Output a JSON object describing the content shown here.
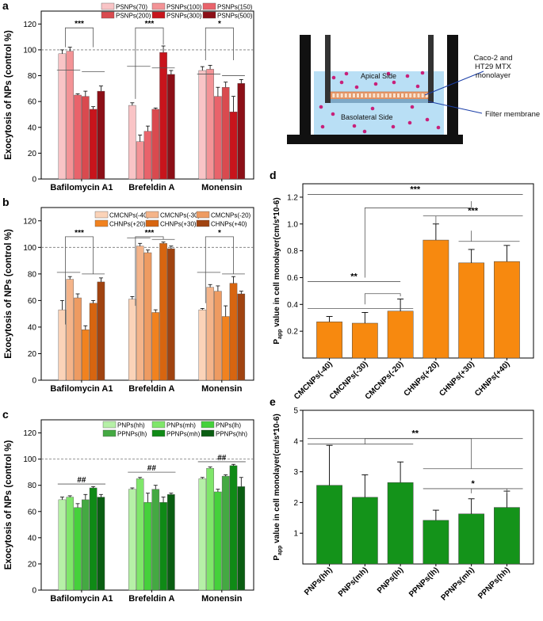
{
  "colors": {
    "axis": "#000000",
    "dash": "#777777",
    "water": "#b9dff5",
    "membrane": "#f2a172",
    "particle": "#c8207a",
    "pink_label_line": "#222222"
  },
  "chart_data": [
    {
      "id": "a",
      "panel_label": "a",
      "type": "bar",
      "ylabel": "Exocytosis of NPs (control %)",
      "ylim": [
        0,
        130
      ],
      "yticks": [
        0,
        20,
        40,
        60,
        80,
        100,
        120
      ],
      "reference_line": 100,
      "categories": [
        "Bafilomycin A1",
        "Brefeldin A",
        "Monensin"
      ],
      "series": [
        {
          "name": "PSNPs(70)",
          "color": "#f9c4c6",
          "values": [
            97,
            57,
            84
          ],
          "errors": [
            3,
            2,
            3
          ]
        },
        {
          "name": "PSNPs(100)",
          "color": "#f39396",
          "values": [
            99,
            29,
            85
          ],
          "errors": [
            3,
            5,
            3
          ]
        },
        {
          "name": "PSNPs(150)",
          "color": "#e9636b",
          "values": [
            65,
            37,
            64
          ],
          "errors": [
            1,
            4,
            7
          ]
        },
        {
          "name": "PSNPs(200)",
          "color": "#d94a4f",
          "values": [
            64,
            54,
            71
          ],
          "errors": [
            4,
            1,
            4
          ]
        },
        {
          "name": "PSNPs(300)",
          "color": "#c8141c",
          "values": [
            54,
            98,
            52
          ],
          "errors": [
            2,
            5,
            12
          ]
        },
        {
          "name": "PSNPs(500)",
          "color": "#8c0f17",
          "values": [
            68,
            81,
            74
          ],
          "errors": [
            4,
            3,
            3
          ]
        }
      ],
      "annotations": [
        {
          "text": "***",
          "group": 0,
          "top_value": 117,
          "left_value": 102,
          "right_value": 102,
          "sub_bracket_value": 83
        },
        {
          "text": "***",
          "group": 1,
          "top_value": 117,
          "left_value": 62,
          "right_value": 104,
          "sub_bracket_value": 86
        },
        {
          "text": "*",
          "group": 2,
          "top_value": 117,
          "left_value": 92,
          "right_value": 92,
          "sub_bracket_value": 80
        }
      ]
    },
    {
      "id": "b",
      "panel_label": "b",
      "type": "bar",
      "ylabel": "Exocytosis of NPs (control %)",
      "ylim": [
        0,
        130
      ],
      "yticks": [
        0,
        20,
        40,
        60,
        80,
        100,
        120
      ],
      "reference_line": 100,
      "categories": [
        "Bafilomycin A1",
        "Brefeldin A",
        "Monensin"
      ],
      "series": [
        {
          "name": "CMCNPs(-40)",
          "color": "#fbd3b8",
          "values": [
            53,
            61,
            53
          ],
          "errors": [
            7,
            2,
            1
          ]
        },
        {
          "name": "CMCNPs(-30)",
          "color": "#f4b48a",
          "values": [
            76,
            101,
            70
          ],
          "errors": [
            2,
            2,
            2
          ]
        },
        {
          "name": "CMCNPs(-20)",
          "color": "#ee9b62",
          "values": [
            62,
            96,
            67
          ],
          "errors": [
            3,
            2,
            4
          ]
        },
        {
          "name": "CHNPs(+20)",
          "color": "#f1821f",
          "values": [
            38,
            51,
            48
          ],
          "errors": [
            3,
            2,
            8
          ]
        },
        {
          "name": "CHNPs(+30)",
          "color": "#d76510",
          "values": [
            58,
            103,
            73
          ],
          "errors": [
            2,
            1,
            5
          ]
        },
        {
          "name": "CHNPs(+40)",
          "color": "#a04310",
          "values": [
            74,
            99,
            65
          ],
          "errors": [
            3,
            2,
            2
          ]
        }
      ],
      "annotations": [
        {
          "text": "***",
          "group": 0,
          "top_value": 108,
          "left_value": 42,
          "right_value": 80,
          "sub_bracket_value": 80
        },
        {
          "text": "***",
          "group": 1,
          "top_value": 108,
          "left_value": 56,
          "right_value": 106,
          "sub_bracket_value": 106
        },
        {
          "text": "*",
          "group": 2,
          "top_value": 108,
          "left_value": 58,
          "right_value": 80,
          "sub_bracket_value": 80
        }
      ]
    },
    {
      "id": "c",
      "panel_label": "c",
      "type": "bar",
      "ylabel": "Exocytosis of NPs (control %)",
      "ylim": [
        0,
        130
      ],
      "yticks": [
        0,
        20,
        40,
        60,
        80,
        100,
        120
      ],
      "reference_line": 100,
      "categories": [
        "Bafilomycin A1",
        "Brefeldin A",
        "Monensin"
      ],
      "series": [
        {
          "name": "PNPs(hh)",
          "color": "#b6f0a7",
          "values": [
            69,
            77,
            85
          ],
          "errors": [
            2,
            1,
            1
          ]
        },
        {
          "name": "PNPs(mh)",
          "color": "#7fe66a",
          "values": [
            71,
            85,
            93
          ],
          "errors": [
            1,
            1,
            1
          ]
        },
        {
          "name": "PNPs(lh)",
          "color": "#45d13b",
          "values": [
            63,
            67,
            75
          ],
          "errors": [
            3,
            7,
            2
          ]
        },
        {
          "name": "PPNPs(lh)",
          "color": "#44a942",
          "values": [
            69,
            77,
            87
          ],
          "errors": [
            4,
            3,
            1
          ]
        },
        {
          "name": "PPNPs(mh)",
          "color": "#0f8a16",
          "values": [
            78,
            67,
            95
          ],
          "errors": [
            1,
            4,
            1
          ]
        },
        {
          "name": "PPNPs(hh)",
          "color": "#0a5e12",
          "values": [
            71,
            73,
            79
          ],
          "errors": [
            2,
            1,
            7
          ]
        }
      ],
      "annotations": [
        {
          "text": "##",
          "group": 0,
          "top_value": 81,
          "type": "line"
        },
        {
          "text": "##",
          "group": 1,
          "top_value": 90,
          "type": "line"
        },
        {
          "text": "##",
          "group": 2,
          "top_value": 98,
          "type": "line"
        }
      ]
    },
    {
      "id": "d",
      "panel_label": "d",
      "type": "bar",
      "ylabel": "P",
      "ylabel_sub": "app",
      "ylabel_rest": " value in cell monolayer(cm/s*10-6)",
      "ylim": [
        0,
        1.3
      ],
      "yticks": [
        0.2,
        0.4,
        0.6,
        0.8,
        1.0,
        1.2
      ],
      "ytick_labels": [
        "0.2",
        "0.4",
        "0.6",
        "0.8",
        "1.0",
        "1.2"
      ],
      "color": "#f7890f",
      "categories": [
        "CMCNPs(-40)",
        "CMCNPs(-30)",
        "CMCNPs(-20)",
        "CHNPs(+20)",
        "CHNPs(+30)",
        "CHNPs(+40)"
      ],
      "values": [
        0.27,
        0.26,
        0.35,
        0.88,
        0.71,
        0.72
      ],
      "errors": [
        0.04,
        0.08,
        0.09,
        0.12,
        0.1,
        0.12
      ],
      "annotations": [
        {
          "text": "***",
          "type": "groups",
          "left_bar": 1,
          "right_bar": 4,
          "top": 1.22,
          "left_drop": 0.6,
          "right_drop": 1.17
        },
        {
          "text": "***",
          "type": "groups",
          "left_bar": 4,
          "right_bar": 4,
          "top": 1.06,
          "left_drop": 1.0,
          "right_drop": 0.87
        },
        {
          "text": "**",
          "type": "groups",
          "left_bar": 1,
          "right_bar": 2,
          "top": 0.57,
          "left_drop": 0.37,
          "right_drop": 0.46
        }
      ]
    },
    {
      "id": "e",
      "panel_label": "e",
      "type": "bar",
      "ylabel": "P",
      "ylabel_sub": "app",
      "ylabel_rest": " value in cell monolayer(cm/s*10-6)",
      "ylim": [
        0,
        5
      ],
      "yticks": [
        1,
        2,
        3,
        4,
        5
      ],
      "ytick_labels": [
        "1",
        "2",
        "3",
        "4",
        "5"
      ],
      "color": "#14931a",
      "categories": [
        "PNPs(hh)",
        "PNPs(mh)",
        "PNPs(lh)",
        "PPNPs(lh)",
        "PPNPs(mh)",
        "PPNPs(hh)"
      ],
      "values": [
        2.56,
        2.17,
        2.65,
        1.42,
        1.63,
        1.84
      ],
      "errors": [
        1.3,
        0.73,
        0.67,
        0.33,
        0.49,
        0.53
      ],
      "annotations": [
        {
          "text": "**",
          "type": "groups",
          "left_bar": 1,
          "right_bar": 4,
          "top": 4.08,
          "left_drop": 3.9,
          "right_drop": 3.1
        },
        {
          "text": "*",
          "type": "groups",
          "left_bar": 4,
          "right_bar": 4,
          "top": 2.45,
          "left_drop": 2.45,
          "right_drop": 2.45
        }
      ]
    }
  ],
  "diagram": {
    "apical_label": "Apical Side",
    "basolateral_label": "Basolateral Side",
    "monolayer_label_1": "Caco-2 and",
    "monolayer_label_2": "HT29 MTX",
    "monolayer_label_3": "monolayer",
    "filter_label": "Filter membrane"
  }
}
